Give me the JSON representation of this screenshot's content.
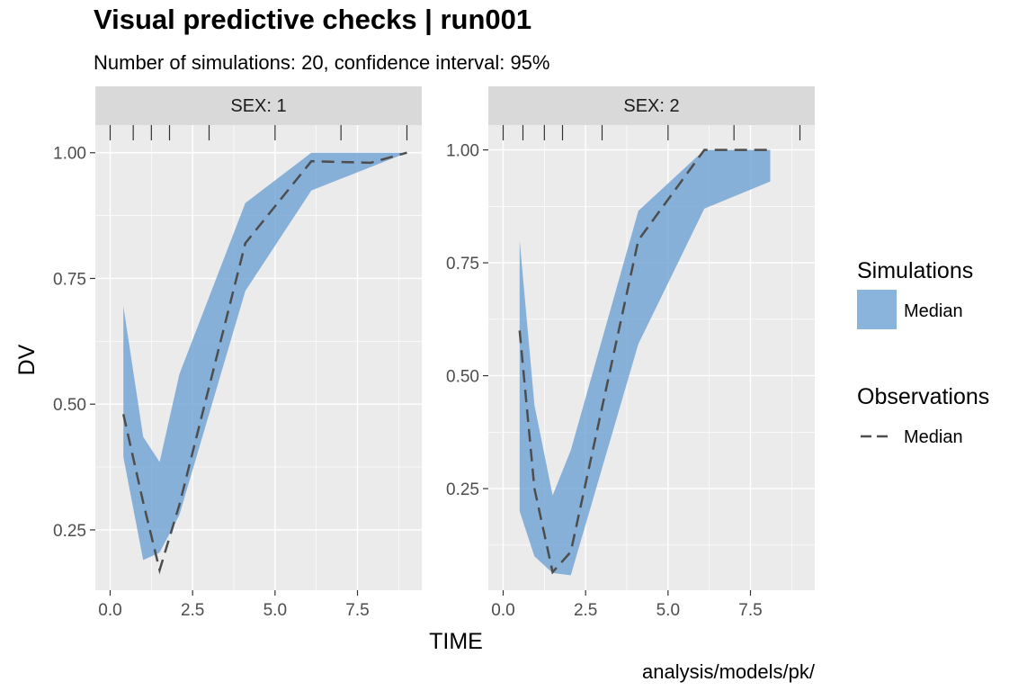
{
  "title": "Visual predictive checks | run001",
  "subtitle": "Number of simulations: 20, confidence interval: 95%",
  "caption": "analysis/models/pk/",
  "colors": {
    "panel_bg": "#ebebeb",
    "strip_bg": "#d9d9d9",
    "grid": "#ffffff",
    "ribbon": "#6a9fd4",
    "median_line": "#4d4d4d",
    "tick": "#333333"
  },
  "chart_data": {
    "type": "area",
    "xlabel": "TIME",
    "ylabel": "DV",
    "x_ticks": [
      0.0,
      2.5,
      5.0,
      7.5
    ],
    "x_tick_labels": [
      "0.0",
      "2.5",
      "5.0",
      "7.5"
    ],
    "grid": true,
    "legend": {
      "placement": "right",
      "groups": [
        {
          "title": "Simulations",
          "key": "ribbon",
          "label": "Median"
        },
        {
          "title": "Observations",
          "key": "dashed-line",
          "label": "Median"
        }
      ]
    },
    "panels": [
      {
        "strip": "SEX: 1",
        "xlim": [
          -0.45,
          9.45
        ],
        "ylim": [
          0.13,
          1.055
        ],
        "y_ticks": [
          0.25,
          0.5,
          0.75,
          1.0
        ],
        "y_tick_labels": [
          "0.25",
          "0.50",
          "0.75",
          "1.00"
        ],
        "bin_edges": [
          0.0,
          0.7,
          1.25,
          1.8,
          3.0,
          5.0,
          7.0,
          9.0
        ],
        "sim_median_ribbon": {
          "x": [
            0.4,
            1.0,
            1.5,
            2.1,
            4.1,
            6.1,
            9.0
          ],
          "lower": [
            0.395,
            0.19,
            0.205,
            0.28,
            0.725,
            0.925,
            1.0
          ],
          "upper": [
            0.695,
            0.435,
            0.385,
            0.56,
            0.9,
            1.0,
            1.0
          ]
        },
        "obs_median": {
          "x": [
            0.4,
            1.0,
            1.5,
            2.1,
            4.1,
            6.1,
            7.9,
            9.0
          ],
          "y": [
            0.48,
            0.305,
            0.17,
            0.3,
            0.82,
            0.983,
            0.98,
            1.0
          ]
        }
      },
      {
        "strip": "SEX: 2",
        "xlim": [
          -0.45,
          9.45
        ],
        "ylim": [
          0.025,
          1.055
        ],
        "y_ticks": [
          0.25,
          0.5,
          0.75,
          1.0
        ],
        "y_tick_labels": [
          "0.25",
          "0.50",
          "0.75",
          "1.00"
        ],
        "bin_edges": [
          0.0,
          0.6,
          1.25,
          1.8,
          3.0,
          5.0,
          7.0,
          9.0
        ],
        "sim_median_ribbon": {
          "x": [
            0.5,
            0.95,
            1.5,
            2.05,
            4.1,
            6.1,
            8.1
          ],
          "lower": [
            0.2,
            0.1,
            0.063,
            0.058,
            0.57,
            0.87,
            0.93
          ],
          "upper": [
            0.8,
            0.435,
            0.235,
            0.335,
            0.865,
            1.0,
            1.0
          ]
        },
        "obs_median": {
          "x": [
            0.5,
            0.95,
            1.5,
            2.05,
            4.1,
            6.1,
            8.1
          ],
          "y": [
            0.6,
            0.25,
            0.065,
            0.11,
            0.8,
            1.0,
            1.0
          ]
        }
      }
    ]
  }
}
